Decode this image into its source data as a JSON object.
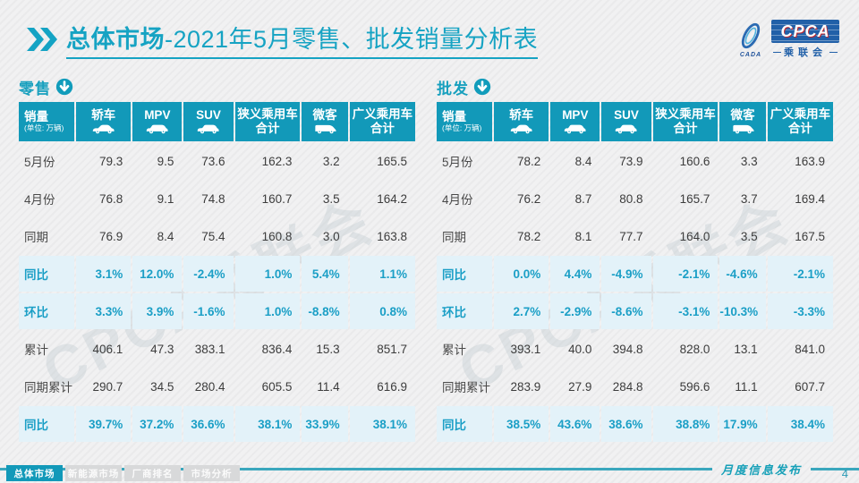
{
  "title": {
    "section": "总体市场",
    "rest": "-2021年5月零售、批发销量分析表"
  },
  "logo": {
    "cpca": "CPCA",
    "org": "乘联会",
    "cada": "CADA"
  },
  "watermark": "CPCA乘联会",
  "colors": {
    "teal": "#1299b9",
    "highlight_row": "#e3f2f9",
    "percent_text": "#1b9fc6",
    "footer_line": "#3aa7bd"
  },
  "columns": [
    {
      "label": "销量",
      "sub": "(单位: 万辆)"
    },
    {
      "label": "轿车",
      "icon": "sedan-icon"
    },
    {
      "label": "MPV",
      "icon": "mpv-icon"
    },
    {
      "label": "SUV",
      "icon": "suv-icon"
    },
    {
      "label": "狭义乘用车",
      "label2": "合计"
    },
    {
      "label": "微客",
      "icon": "van-icon"
    },
    {
      "label": "广义乘用车",
      "label2": "合计"
    }
  ],
  "tables": [
    {
      "title": "零售",
      "rows": [
        {
          "label": "5月份",
          "highlight": false,
          "values": [
            "79.3",
            "9.5",
            "73.6",
            "162.3",
            "3.2",
            "165.5"
          ]
        },
        {
          "label": "4月份",
          "highlight": false,
          "values": [
            "76.8",
            "9.1",
            "74.8",
            "160.7",
            "3.5",
            "164.2"
          ]
        },
        {
          "label": "同期",
          "highlight": false,
          "values": [
            "76.9",
            "8.4",
            "75.4",
            "160.8",
            "3.0",
            "163.8"
          ]
        },
        {
          "label": "同比",
          "highlight": true,
          "values": [
            "3.1%",
            "12.0%",
            "-2.4%",
            "1.0%",
            "5.4%",
            "1.1%"
          ]
        },
        {
          "label": "环比",
          "highlight": true,
          "values": [
            "3.3%",
            "3.9%",
            "-1.6%",
            "1.0%",
            "-8.8%",
            "0.8%"
          ]
        },
        {
          "label": "累计",
          "highlight": false,
          "values": [
            "406.1",
            "47.3",
            "383.1",
            "836.4",
            "15.3",
            "851.7"
          ]
        },
        {
          "label": "同期累计",
          "highlight": false,
          "values": [
            "290.7",
            "34.5",
            "280.4",
            "605.5",
            "11.4",
            "616.9"
          ]
        },
        {
          "label": "同比",
          "highlight": true,
          "values": [
            "39.7%",
            "37.2%",
            "36.6%",
            "38.1%",
            "33.9%",
            "38.1%"
          ]
        }
      ]
    },
    {
      "title": "批发",
      "rows": [
        {
          "label": "5月份",
          "highlight": false,
          "values": [
            "78.2",
            "8.4",
            "73.9",
            "160.6",
            "3.3",
            "163.9"
          ]
        },
        {
          "label": "4月份",
          "highlight": false,
          "values": [
            "76.2",
            "8.7",
            "80.8",
            "165.7",
            "3.7",
            "169.4"
          ]
        },
        {
          "label": "同期",
          "highlight": false,
          "values": [
            "78.2",
            "8.1",
            "77.7",
            "164.0",
            "3.5",
            "167.5"
          ]
        },
        {
          "label": "同比",
          "highlight": true,
          "values": [
            "0.0%",
            "4.4%",
            "-4.9%",
            "-2.1%",
            "-4.6%",
            "-2.1%"
          ]
        },
        {
          "label": "环比",
          "highlight": true,
          "values": [
            "2.7%",
            "-2.9%",
            "-8.6%",
            "-3.1%",
            "-10.3%",
            "-3.3%"
          ]
        },
        {
          "label": "累计",
          "highlight": false,
          "values": [
            "393.1",
            "40.0",
            "394.8",
            "828.0",
            "13.1",
            "841.0"
          ]
        },
        {
          "label": "同期累计",
          "highlight": false,
          "values": [
            "283.9",
            "27.9",
            "284.8",
            "596.6",
            "11.1",
            "607.7"
          ]
        },
        {
          "label": "同比",
          "highlight": true,
          "values": [
            "38.5%",
            "43.6%",
            "38.6%",
            "38.8%",
            "17.9%",
            "38.4%"
          ]
        }
      ]
    }
  ],
  "footer": {
    "tabs": [
      {
        "label": "总体市场",
        "active": true
      },
      {
        "label": "新能源市场",
        "active": false
      },
      {
        "label": "厂商排名",
        "active": false
      },
      {
        "label": "市场分析",
        "active": false
      }
    ],
    "release_label": "月度信息发布",
    "page_number": "4"
  }
}
